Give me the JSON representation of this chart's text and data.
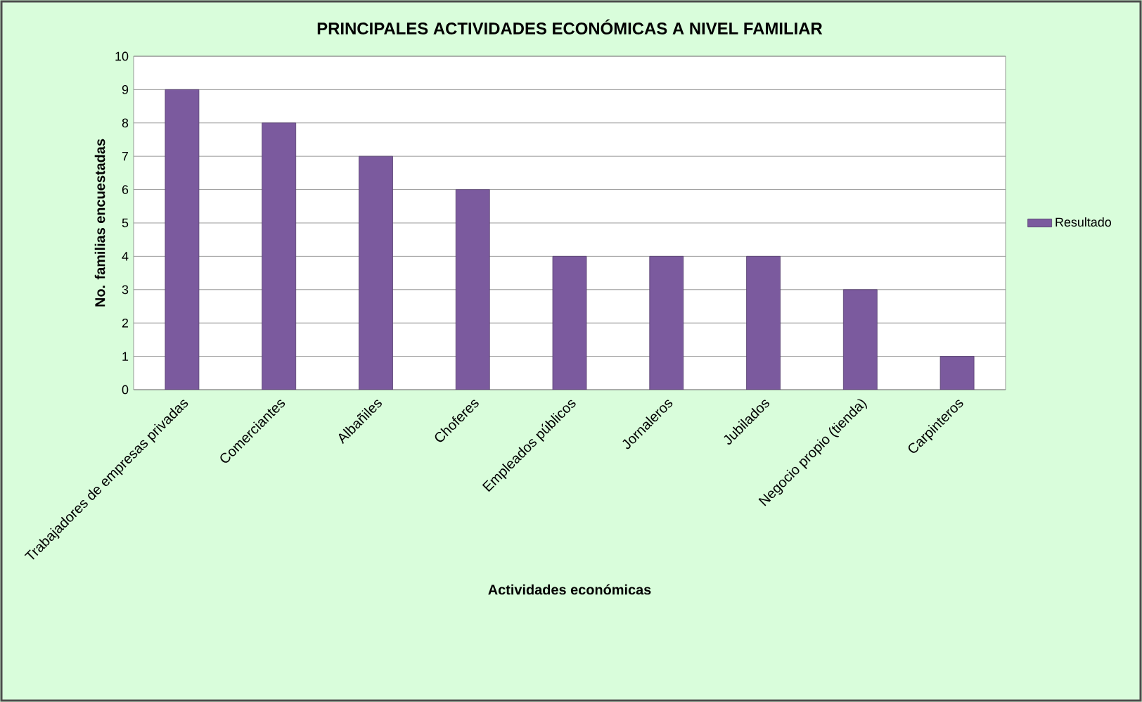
{
  "chart_data": {
    "type": "bar",
    "title": "PRINCIPALES ACTIVIDADES ECONÓMICAS A NIVEL FAMILIAR",
    "xlabel": "Actividades económicas",
    "ylabel": "No. familias encuestadas",
    "categories": [
      "Trabajadores de empresas privadas",
      "Comerciantes",
      "Albañiles",
      "Choferes",
      "Empleados públicos",
      "Jornaleros",
      "Jubilados",
      "Negocio propio (tienda)",
      "Carpinteros"
    ],
    "series": [
      {
        "name": "Resultado",
        "color": "#7b5a9e",
        "values": [
          9,
          8,
          7,
          6,
          4,
          4,
          4,
          3,
          1
        ]
      }
    ],
    "ylim": [
      0,
      10
    ],
    "yticks": [
      0,
      1,
      2,
      3,
      4,
      5,
      6,
      7,
      8,
      9,
      10
    ],
    "grid": "y",
    "legend": "right"
  }
}
